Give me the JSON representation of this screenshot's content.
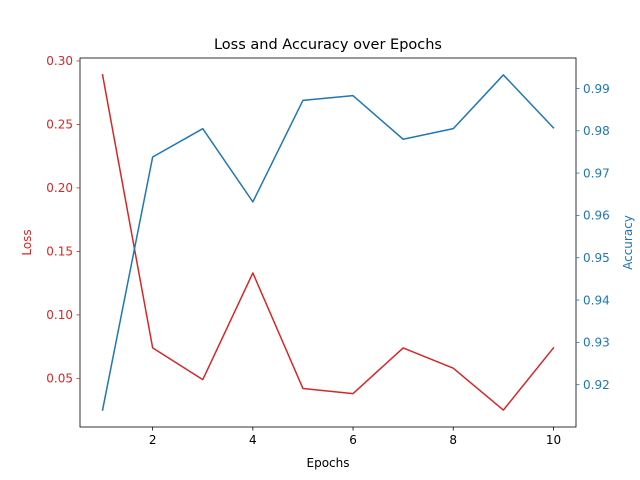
{
  "chart_data": {
    "type": "line",
    "title": "Loss and Accuracy over Epochs",
    "xlabel": "Epochs",
    "x": [
      1,
      2,
      3,
      4,
      5,
      6,
      7,
      8,
      9,
      10
    ],
    "xlim": [
      0.55,
      10.45
    ],
    "xticks": [
      2,
      4,
      6,
      8,
      10
    ],
    "grid": false,
    "legend": "none",
    "series": [
      {
        "name": "Loss",
        "axis": "left",
        "color": "#d62728",
        "values": [
          0.289,
          0.074,
          0.049,
          0.133,
          0.042,
          0.038,
          0.074,
          0.058,
          0.025,
          0.074
        ]
      },
      {
        "name": "Accuracy",
        "axis": "right",
        "color": "#1f77b4",
        "values": [
          0.914,
          0.9738,
          0.9805,
          0.9632,
          0.9872,
          0.9883,
          0.978,
          0.9805,
          0.9932,
          0.9807
        ]
      }
    ],
    "y_left": {
      "label": "Loss",
      "color": "#d62728",
      "lim": [
        0.0117,
        0.3023
      ],
      "ticks": [
        0.05,
        0.1,
        0.15,
        0.2,
        0.25,
        0.3
      ],
      "tick_labels": [
        "0.05",
        "0.10",
        "0.15",
        "0.20",
        "0.25",
        "0.30"
      ]
    },
    "y_right": {
      "label": "Accuracy",
      "color": "#1f77b4",
      "lim": [
        0.91,
        0.9972
      ],
      "ticks": [
        0.92,
        0.93,
        0.94,
        0.95,
        0.96,
        0.97,
        0.98,
        0.99
      ],
      "tick_labels": [
        "0.92",
        "0.93",
        "0.94",
        "0.95",
        "0.96",
        "0.97",
        "0.98",
        "0.99"
      ]
    }
  }
}
